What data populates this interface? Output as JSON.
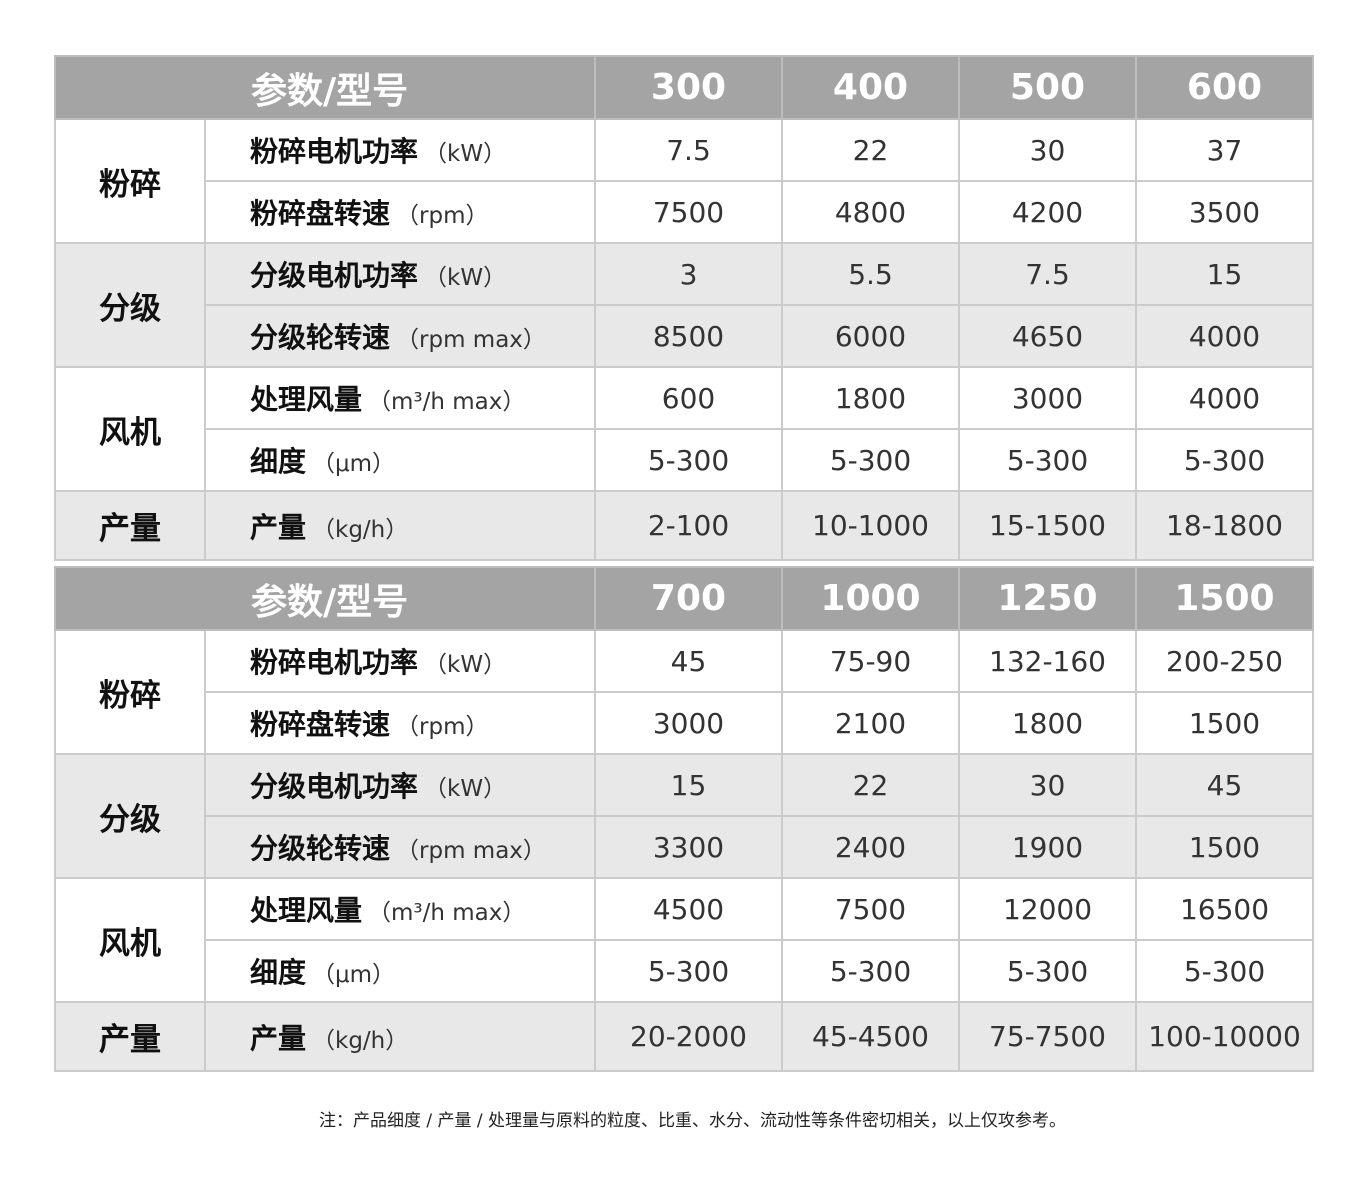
{
  "header_label": "参数/型号",
  "groups": [
    "粉碎",
    "分级",
    "风机",
    "产量"
  ],
  "params": [
    {
      "label": "粉碎电机功率",
      "unit": "（kW）"
    },
    {
      "label": "粉碎盘转速",
      "unit": "（rpm）"
    },
    {
      "label": "分级电机功率",
      "unit": "（kW）"
    },
    {
      "label": "分级轮转速",
      "unit": "（rpm max）"
    },
    {
      "label": "处理风量",
      "unit": "（m³/h max）"
    },
    {
      "label": "细度",
      "unit": "（μm）"
    },
    {
      "label": "产量",
      "unit": "（kg/h）"
    }
  ],
  "tables": [
    {
      "models": [
        "300",
        "400",
        "500",
        "600"
      ],
      "rows": [
        [
          "7.5",
          "22",
          "30",
          "37"
        ],
        [
          "7500",
          "4800",
          "4200",
          "3500"
        ],
        [
          "3",
          "5.5",
          "7.5",
          "15"
        ],
        [
          "8500",
          "6000",
          "4650",
          "4000"
        ],
        [
          "600",
          "1800",
          "3000",
          "4000"
        ],
        [
          "5-300",
          "5-300",
          "5-300",
          "5-300"
        ],
        [
          "2-100",
          "10-1000",
          "15-1500",
          "18-1800"
        ]
      ]
    },
    {
      "models": [
        "700",
        "1000",
        "1250",
        "1500"
      ],
      "rows": [
        [
          "45",
          "75-90",
          "132-160",
          "200-250"
        ],
        [
          "3000",
          "2100",
          "1800",
          "1500"
        ],
        [
          "15",
          "22",
          "30",
          "45"
        ],
        [
          "3300",
          "2400",
          "1900",
          "1500"
        ],
        [
          "4500",
          "7500",
          "12000",
          "16500"
        ],
        [
          "5-300",
          "5-300",
          "5-300",
          "5-300"
        ],
        [
          "20-2000",
          "45-4500",
          "75-7500",
          "100-10000"
        ]
      ]
    }
  ],
  "note": "注：产品细度 / 产量 / 处理量与原料的粒度、比重、水分、流动性等条件密切相关，以上仅攻参考。",
  "colors": {
    "header_bg": "#a4a4a4",
    "band_bg": "#e8e8e8",
    "border": "#cbcbcb"
  }
}
